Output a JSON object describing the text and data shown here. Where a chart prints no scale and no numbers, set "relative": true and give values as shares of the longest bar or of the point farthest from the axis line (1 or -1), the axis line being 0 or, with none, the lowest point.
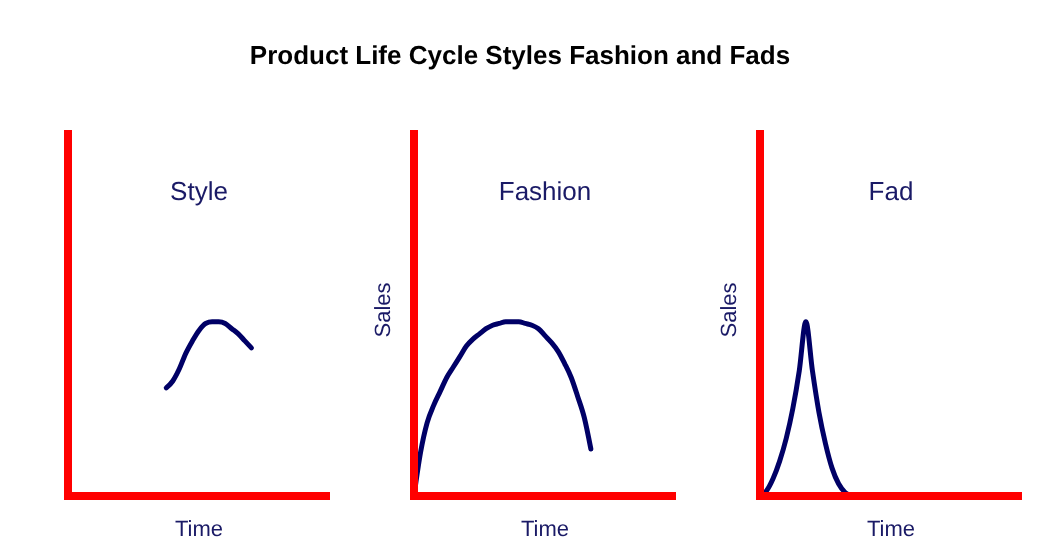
{
  "chart_data": [
    {
      "type": "line",
      "title": "Product Life Cycle Styles Fashion and Fads",
      "subtitle": "Style",
      "xlabel": "Time",
      "relative": true,
      "categories": [
        null,
        null,
        null,
        null,
        null,
        null,
        null,
        null,
        null,
        null,
        null,
        null,
        null,
        null,
        null,
        null,
        null,
        null,
        null,
        null,
        null,
        null,
        null,
        null,
        null,
        null,
        null,
        null,
        null,
        null,
        null,
        null,
        null,
        null,
        null,
        null,
        null,
        null,
        null,
        null,
        null
      ],
      "series": [
        {
          "color": "#000066",
          "values": [
            null,
            null,
            null,
            null,
            null,
            null,
            null,
            null,
            null,
            null,
            null,
            null,
            null,
            null,
            null,
            0.62,
            0.66,
            0.73,
            0.82,
            0.89,
            0.95,
            0.99,
            1,
            1,
            0.99,
            0.96,
            0.93,
            0.89,
            0.85,
            null,
            null,
            null,
            null,
            null,
            null,
            null,
            null,
            null,
            null,
            null,
            null
          ]
        }
      ]
    },
    {
      "type": "line",
      "subtitle": "Fashion",
      "xlabel": "Time",
      "ylabel": "Sales",
      "relative": true,
      "categories": [
        null,
        null,
        null,
        null,
        null,
        null,
        null,
        null,
        null,
        null,
        null,
        null,
        null,
        null,
        null,
        null,
        null,
        null,
        null,
        null,
        null,
        null,
        null,
        null,
        null,
        null,
        null,
        null,
        null,
        null,
        null,
        null,
        null,
        null,
        null,
        null,
        null,
        null,
        null,
        null,
        null
      ],
      "series": [
        {
          "color": "#000066",
          "values": [
            0,
            0.25,
            0.42,
            0.52,
            0.6,
            0.68,
            0.74,
            0.8,
            0.86,
            0.9,
            0.93,
            0.96,
            0.98,
            0.99,
            1,
            1,
            1,
            0.99,
            0.98,
            0.96,
            0.92,
            0.88,
            0.83,
            0.76,
            0.68,
            0.57,
            0.45,
            0.27,
            null,
            null,
            null,
            null,
            null,
            null,
            null,
            null,
            null,
            null,
            null,
            null,
            null
          ]
        }
      ]
    },
    {
      "type": "line",
      "subtitle": "Fad",
      "xlabel": "Time",
      "ylabel": "Sales",
      "relative": true,
      "categories": [
        null,
        null,
        null,
        null,
        null,
        null,
        null,
        null,
        null,
        null,
        null,
        null,
        null,
        null,
        null,
        null,
        null,
        null,
        null,
        null,
        null,
        null,
        null,
        null,
        null,
        null,
        null,
        null,
        null,
        null,
        null,
        null,
        null,
        null,
        null,
        null,
        null,
        null,
        null,
        null,
        null
      ],
      "series": [
        {
          "color": "#000066",
          "values": [
            0,
            0.03,
            0.1,
            0.2,
            0.33,
            0.5,
            0.72,
            1,
            0.72,
            0.48,
            0.3,
            0.16,
            0.07,
            0.02,
            0,
            null,
            null,
            null,
            null,
            null,
            null,
            null,
            null,
            null,
            null,
            null,
            null,
            null,
            null,
            null,
            null,
            null,
            null,
            null,
            null,
            null,
            null,
            null,
            null,
            null,
            null
          ]
        }
      ]
    }
  ]
}
